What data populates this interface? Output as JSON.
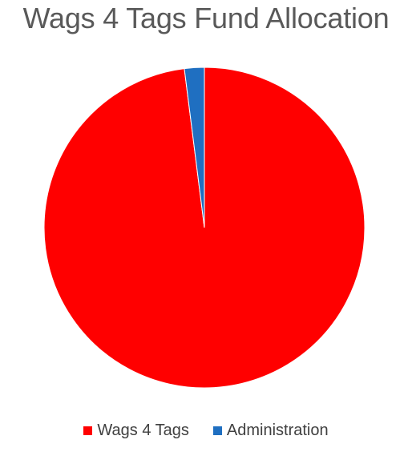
{
  "chart_data": {
    "type": "pie",
    "title": "Wags 4 Tags Fund Allocation",
    "legend_position": "bottom",
    "slices": [
      {
        "label": "Wags 4 Tags",
        "value": 98,
        "color": "#ff0000"
      },
      {
        "label": "Administration",
        "value": 2,
        "color": "#1f6fc1"
      }
    ]
  }
}
